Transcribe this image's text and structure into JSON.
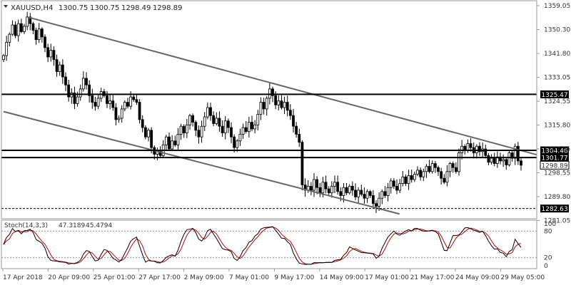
{
  "header": {
    "symbol": "XAUUSD,H4",
    "open": "1300.75",
    "high": "1300.75",
    "low": "1298.49",
    "close": "1298.89"
  },
  "chart_data": {
    "type": "candlestick",
    "ylim": [
      1278.8,
      1360.6
    ],
    "price_ticks": [
      "1359.05",
      "1350.30",
      "1341.80",
      "1333.05",
      "1324.55",
      "1315.80",
      "1307.05",
      "1298.55",
      "1289.80",
      "1281.05"
    ],
    "x_ticks": [
      "17 Apr 2018",
      "20 Apr 09:00",
      "25 Apr 01:00",
      "27 Apr 17:00",
      "2 May 09:00",
      "7 May 01:00",
      "9 May 17:00",
      "14 May 09:00",
      "17 May 01:00",
      "21 May 17:00",
      "24 May 09:00",
      "29 May 05:00"
    ],
    "horizontal_levels": [
      {
        "price": 1325.47,
        "label": "1325.47"
      },
      {
        "price": 1304.46,
        "label": "1304.46"
      },
      {
        "price": 1301.77,
        "label": "1301.77"
      },
      {
        "price": 1282.63,
        "label": "1282.63",
        "style": "dashed"
      }
    ],
    "current_price": {
      "price": 1298.89,
      "label": "1298.89"
    },
    "trendlines": [
      {
        "from": {
          "bar": 8,
          "price": 1354.5
        },
        "to": {
          "bar": 182,
          "price": 1302.8
        }
      },
      {
        "from": {
          "bar": 0,
          "price": 1319.0
        },
        "to": {
          "bar": 131,
          "price": 1280.6
        }
      }
    ],
    "closes": [
      1340.0,
      1345.0,
      1348.0,
      1351.5,
      1347.5,
      1352.0,
      1349.0,
      1351.0,
      1354.5,
      1352.0,
      1349.5,
      1346.0,
      1350.0,
      1347.0,
      1343.0,
      1339.5,
      1342.0,
      1338.5,
      1334.0,
      1336.5,
      1332.0,
      1329.0,
      1324.5,
      1326.0,
      1322.0,
      1324.5,
      1327.5,
      1331.5,
      1329.0,
      1325.0,
      1322.5,
      1321.0,
      1324.0,
      1326.5,
      1325.0,
      1322.0,
      1323.0,
      1320.5,
      1316.0,
      1316.5,
      1320.0,
      1322.5,
      1321.0,
      1324.5,
      1323.5,
      1322.5,
      1316.0,
      1313.0,
      1309.5,
      1312.0,
      1305.5,
      1303.0,
      1304.5,
      1302.5,
      1306.5,
      1309.5,
      1305.0,
      1308.0,
      1306.5,
      1310.5,
      1313.5,
      1311.0,
      1314.0,
      1317.5,
      1315.0,
      1312.0,
      1309.5,
      1313.5,
      1317.0,
      1320.5,
      1317.5,
      1314.5,
      1316.5,
      1313.5,
      1311.0,
      1315.5,
      1313.0,
      1309.5,
      1305.5,
      1308.0,
      1310.5,
      1313.0,
      1311.5,
      1315.0,
      1312.5,
      1314.0,
      1318.0,
      1322.5,
      1320.0,
      1324.0,
      1327.5,
      1325.0,
      1321.5,
      1323.0,
      1320.5,
      1322.5,
      1319.5,
      1317.5,
      1313.5,
      1310.5,
      1307.5,
      1291.5,
      1289.5,
      1291.0,
      1289.5,
      1293.5,
      1290.5,
      1288.5,
      1292.5,
      1290.0,
      1288.5,
      1291.0,
      1292.5,
      1289.0,
      1287.5,
      1290.5,
      1288.5,
      1291.0,
      1289.5,
      1287.0,
      1289.5,
      1288.0,
      1286.5,
      1289.0,
      1287.5,
      1284.5,
      1283.5,
      1286.5,
      1289.0,
      1287.5,
      1290.5,
      1293.0,
      1291.0,
      1289.5,
      1292.0,
      1294.5,
      1292.0,
      1295.0,
      1293.5,
      1295.5,
      1297.0,
      1294.5,
      1296.5,
      1298.5,
      1296.5,
      1299.5,
      1298.0,
      1296.5,
      1294.0,
      1292.5,
      1296.5,
      1299.5,
      1298.0,
      1296.5,
      1303.5,
      1306.0,
      1304.5,
      1307.0,
      1305.5,
      1303.5,
      1306.0,
      1304.0,
      1305.0,
      1302.5,
      1300.0,
      1301.5,
      1299.5,
      1302.0,
      1300.5,
      1301.0,
      1299.0,
      1303.5,
      1301.5,
      1306.0,
      1300.5,
      1298.89
    ],
    "stochastic": {
      "label": "Stoch(14,3,3)",
      "main": "47.3189",
      "signal": "45.4794",
      "levels": [
        "80",
        "20"
      ],
      "scale_max": "100",
      "scale_min": "0",
      "main_color": "#000000",
      "signal_color": "#cc0000"
    },
    "colors": {
      "candle_body": "#000000",
      "bullish_body": "#ffffff",
      "level_line": "#000000",
      "trendline": "#666666",
      "price_label_bg": "#000000",
      "price_label_text": "#ffffff"
    }
  }
}
